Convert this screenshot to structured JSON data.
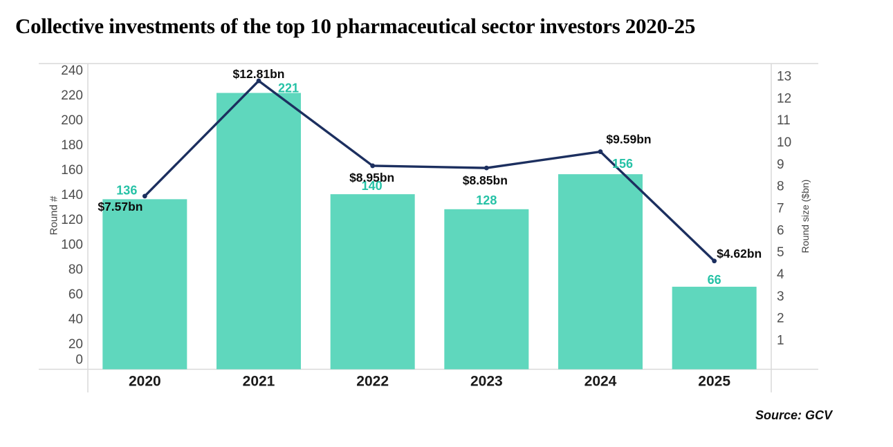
{
  "title": "Collective investments of the top 10 pharmaceutical sector investors 2020-25",
  "source_note": "Source: GCV",
  "chart_data": {
    "type": "combo (bar + line)",
    "categories": [
      "2020",
      "2021",
      "2022",
      "2023",
      "2024",
      "2025"
    ],
    "series": [
      {
        "name": "Round #",
        "type": "bar",
        "axis": "left",
        "values": [
          136,
          221,
          140,
          128,
          156,
          66
        ],
        "data_labels": [
          "136",
          "221",
          "140",
          "128",
          "156",
          "66"
        ],
        "color": "#5FD7BD",
        "label_color": "#26C2A6"
      },
      {
        "name": "Round size ($bn)",
        "type": "line",
        "axis": "right",
        "values": [
          7.57,
          12.81,
          8.95,
          8.85,
          9.59,
          4.62
        ],
        "data_labels": [
          "$7.57bn",
          "$12.81bn",
          "$8.95bn",
          "$8.85bn",
          "$9.59bn",
          "$4.62bn"
        ],
        "color": "#1C2F5F",
        "label_color": "#0d0d0d"
      }
    ],
    "left_axis": {
      "title": "Round #",
      "min": 0,
      "max": 240,
      "step": 20,
      "tick_labels": [
        "0",
        "20",
        "40",
        "60",
        "80",
        "100",
        "120",
        "140",
        "160",
        "180",
        "200",
        "220",
        "240"
      ]
    },
    "right_axis": {
      "title": "Round size ($bn)",
      "min": 1,
      "max": 13,
      "step": 1,
      "tick_labels": [
        "1",
        "2",
        "3",
        "4",
        "5",
        "6",
        "7",
        "8",
        "9",
        "10",
        "11",
        "12",
        "13"
      ]
    },
    "grid": false,
    "legend": "none",
    "axis_line_color": "#D9D9D9",
    "tick_color": "#4D4D4D",
    "axis_title_color": "#444444",
    "category_label_color": "#1A1A1A"
  }
}
